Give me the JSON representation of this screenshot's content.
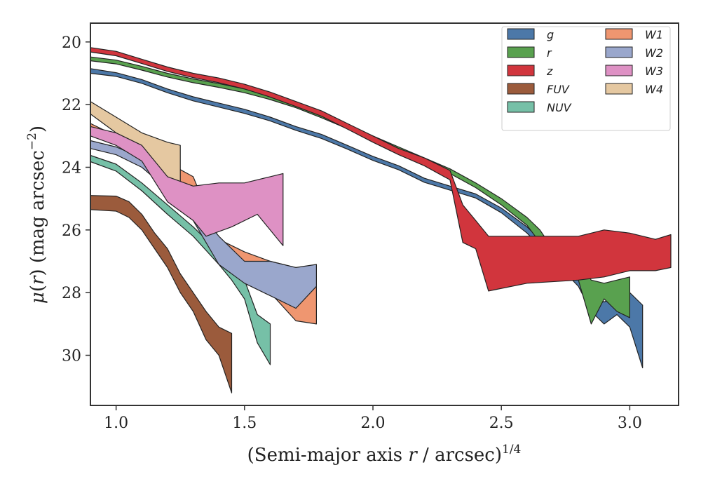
{
  "chart_data": {
    "type": "area",
    "xlabel": "(Semi-major axis r / arcsec)^1/4",
    "ylabel": "μ(r) (mag arcsec^-2)",
    "xlim": [
      0.9,
      3.19
    ],
    "ylim": [
      31.6,
      19.4
    ],
    "y_inverted": true,
    "grid": false,
    "legend_position": "top-right",
    "legend_columns": 2,
    "xticks": [
      "1.0",
      "1.5",
      "2.0",
      "2.5",
      "3.0"
    ],
    "xtick_values": [
      1.0,
      1.5,
      2.0,
      2.5,
      3.0
    ],
    "yticks": [
      "20",
      "22",
      "24",
      "26",
      "28",
      "30"
    ],
    "ytick_values": [
      20,
      22,
      24,
      26,
      28,
      30
    ],
    "series": [
      {
        "name": "g",
        "color": "#4c78a8",
        "upper": [
          [
            0.9,
            20.85
          ],
          [
            1.0,
            20.98
          ],
          [
            1.1,
            21.2
          ],
          [
            1.2,
            21.5
          ],
          [
            1.3,
            21.75
          ],
          [
            1.4,
            21.95
          ],
          [
            1.5,
            22.15
          ],
          [
            1.6,
            22.4
          ],
          [
            1.7,
            22.7
          ],
          [
            1.8,
            22.95
          ],
          [
            1.9,
            23.3
          ],
          [
            2.0,
            23.65
          ],
          [
            2.1,
            23.95
          ],
          [
            2.2,
            24.35
          ],
          [
            2.3,
            24.6
          ],
          [
            2.4,
            24.85
          ],
          [
            2.5,
            25.3
          ],
          [
            2.6,
            25.9
          ],
          [
            2.7,
            26.7
          ],
          [
            2.8,
            27.4
          ],
          [
            2.85,
            27.9
          ],
          [
            2.9,
            28.3
          ],
          [
            2.95,
            28.1
          ],
          [
            3.0,
            28.0
          ],
          [
            3.05,
            28.4
          ]
        ],
        "lower": [
          [
            0.9,
            21.0
          ],
          [
            1.0,
            21.1
          ],
          [
            1.1,
            21.32
          ],
          [
            1.2,
            21.62
          ],
          [
            1.3,
            21.88
          ],
          [
            1.4,
            22.08
          ],
          [
            1.5,
            22.28
          ],
          [
            1.6,
            22.52
          ],
          [
            1.7,
            22.82
          ],
          [
            1.8,
            23.08
          ],
          [
            1.9,
            23.42
          ],
          [
            2.0,
            23.78
          ],
          [
            2.1,
            24.08
          ],
          [
            2.2,
            24.48
          ],
          [
            2.3,
            24.73
          ],
          [
            2.4,
            24.98
          ],
          [
            2.5,
            25.45
          ],
          [
            2.6,
            26.1
          ],
          [
            2.7,
            26.95
          ],
          [
            2.8,
            27.8
          ],
          [
            2.85,
            28.6
          ],
          [
            2.9,
            29.0
          ],
          [
            2.95,
            28.7
          ],
          [
            3.0,
            29.1
          ],
          [
            3.05,
            30.4
          ]
        ]
      },
      {
        "name": "r",
        "color": "#59a14f",
        "upper": [
          [
            0.9,
            20.48
          ],
          [
            1.0,
            20.58
          ],
          [
            1.1,
            20.78
          ],
          [
            1.2,
            21.0
          ],
          [
            1.3,
            21.18
          ],
          [
            1.4,
            21.33
          ],
          [
            1.5,
            21.5
          ],
          [
            1.6,
            21.72
          ],
          [
            1.7,
            21.98
          ],
          [
            1.8,
            22.3
          ],
          [
            1.9,
            22.65
          ],
          [
            2.0,
            23.0
          ],
          [
            2.1,
            23.35
          ],
          [
            2.2,
            23.7
          ],
          [
            2.3,
            24.05
          ],
          [
            2.4,
            24.5
          ],
          [
            2.5,
            25.0
          ],
          [
            2.6,
            25.6
          ],
          [
            2.65,
            26.0
          ],
          [
            2.7,
            26.6
          ],
          [
            2.8,
            27.0
          ],
          [
            2.85,
            27.6
          ],
          [
            2.9,
            27.7
          ],
          [
            2.95,
            27.6
          ],
          [
            3.0,
            27.5
          ]
        ],
        "lower": [
          [
            0.9,
            20.6
          ],
          [
            1.0,
            20.7
          ],
          [
            1.1,
            20.9
          ],
          [
            1.2,
            21.12
          ],
          [
            1.3,
            21.3
          ],
          [
            1.4,
            21.45
          ],
          [
            1.5,
            21.62
          ],
          [
            1.6,
            21.84
          ],
          [
            1.7,
            22.1
          ],
          [
            1.8,
            22.42
          ],
          [
            1.9,
            22.77
          ],
          [
            2.0,
            23.12
          ],
          [
            2.1,
            23.47
          ],
          [
            2.2,
            23.83
          ],
          [
            2.3,
            24.2
          ],
          [
            2.4,
            24.65
          ],
          [
            2.5,
            25.2
          ],
          [
            2.6,
            25.85
          ],
          [
            2.65,
            26.4
          ],
          [
            2.7,
            27.0
          ],
          [
            2.8,
            27.6
          ],
          [
            2.85,
            29.0
          ],
          [
            2.9,
            28.2
          ],
          [
            2.95,
            28.6
          ],
          [
            3.0,
            28.8
          ]
        ]
      },
      {
        "name": "z",
        "color": "#d1353d",
        "upper": [
          [
            0.9,
            20.18
          ],
          [
            1.0,
            20.3
          ],
          [
            1.1,
            20.55
          ],
          [
            1.2,
            20.8
          ],
          [
            1.3,
            21.0
          ],
          [
            1.4,
            21.15
          ],
          [
            1.5,
            21.35
          ],
          [
            1.6,
            21.6
          ],
          [
            1.7,
            21.9
          ],
          [
            1.8,
            22.2
          ],
          [
            1.9,
            22.6
          ],
          [
            2.0,
            23.0
          ],
          [
            2.1,
            23.4
          ],
          [
            2.2,
            23.7
          ],
          [
            2.3,
            24.1
          ],
          [
            2.35,
            25.2
          ],
          [
            2.4,
            25.7
          ],
          [
            2.45,
            26.2
          ],
          [
            2.6,
            26.2
          ],
          [
            2.8,
            26.2
          ],
          [
            2.9,
            26.0
          ],
          [
            3.0,
            26.1
          ],
          [
            3.1,
            26.3
          ],
          [
            3.16,
            26.15
          ]
        ],
        "lower": [
          [
            0.9,
            20.32
          ],
          [
            1.0,
            20.44
          ],
          [
            1.1,
            20.69
          ],
          [
            1.2,
            20.94
          ],
          [
            1.3,
            21.14
          ],
          [
            1.4,
            21.3
          ],
          [
            1.5,
            21.5
          ],
          [
            1.6,
            21.76
          ],
          [
            1.7,
            22.06
          ],
          [
            1.8,
            22.37
          ],
          [
            1.9,
            22.78
          ],
          [
            2.0,
            23.2
          ],
          [
            2.1,
            23.6
          ],
          [
            2.2,
            23.95
          ],
          [
            2.3,
            24.4
          ],
          [
            2.35,
            26.4
          ],
          [
            2.4,
            26.6
          ],
          [
            2.45,
            27.95
          ],
          [
            2.6,
            27.7
          ],
          [
            2.8,
            27.6
          ],
          [
            2.9,
            27.5
          ],
          [
            3.0,
            27.3
          ],
          [
            3.1,
            27.3
          ],
          [
            3.16,
            27.2
          ]
        ]
      },
      {
        "name": "FUV",
        "color": "#9b5b3c",
        "upper": [
          [
            0.9,
            24.9
          ],
          [
            1.0,
            24.92
          ],
          [
            1.05,
            25.1
          ],
          [
            1.1,
            25.5
          ],
          [
            1.15,
            26.1
          ],
          [
            1.2,
            26.6
          ],
          [
            1.25,
            27.4
          ],
          [
            1.3,
            28.0
          ],
          [
            1.35,
            28.6
          ],
          [
            1.4,
            29.1
          ],
          [
            1.45,
            29.3
          ]
        ],
        "lower": [
          [
            0.9,
            25.35
          ],
          [
            1.0,
            25.4
          ],
          [
            1.05,
            25.6
          ],
          [
            1.1,
            26.0
          ],
          [
            1.15,
            26.6
          ],
          [
            1.2,
            27.2
          ],
          [
            1.25,
            28.0
          ],
          [
            1.3,
            28.6
          ],
          [
            1.35,
            29.5
          ],
          [
            1.4,
            30.0
          ],
          [
            1.45,
            31.2
          ]
        ]
      },
      {
        "name": "NUV",
        "color": "#76c0a7",
        "upper": [
          [
            0.9,
            23.62
          ],
          [
            1.0,
            23.9
          ],
          [
            1.1,
            24.5
          ],
          [
            1.2,
            25.2
          ],
          [
            1.3,
            25.9
          ],
          [
            1.4,
            26.7
          ],
          [
            1.45,
            27.0
          ],
          [
            1.5,
            27.6
          ],
          [
            1.55,
            28.7
          ],
          [
            1.6,
            29.0
          ]
        ],
        "lower": [
          [
            0.9,
            23.82
          ],
          [
            1.0,
            24.12
          ],
          [
            1.1,
            24.75
          ],
          [
            1.2,
            25.5
          ],
          [
            1.3,
            26.2
          ],
          [
            1.4,
            27.1
          ],
          [
            1.45,
            27.6
          ],
          [
            1.5,
            28.2
          ],
          [
            1.55,
            29.6
          ],
          [
            1.6,
            30.3
          ]
        ]
      },
      {
        "name": "W1",
        "color": "#ef9670",
        "upper": [
          [
            0.9,
            22.6
          ],
          [
            1.0,
            23.0
          ],
          [
            1.1,
            23.4
          ],
          [
            1.2,
            23.85
          ],
          [
            1.3,
            24.3
          ],
          [
            1.4,
            26.3
          ],
          [
            1.5,
            26.7
          ],
          [
            1.6,
            27.0
          ],
          [
            1.7,
            27.2
          ],
          [
            1.78,
            27.4
          ]
        ],
        "lower": [
          [
            0.9,
            22.85
          ],
          [
            1.0,
            23.3
          ],
          [
            1.1,
            23.7
          ],
          [
            1.2,
            24.2
          ],
          [
            1.3,
            24.7
          ],
          [
            1.4,
            26.7
          ],
          [
            1.5,
            27.4
          ],
          [
            1.6,
            28.0
          ],
          [
            1.7,
            28.9
          ],
          [
            1.78,
            29.0
          ]
        ]
      },
      {
        "name": "W2",
        "color": "#9aa7cc",
        "upper": [
          [
            0.9,
            23.15
          ],
          [
            1.0,
            23.35
          ],
          [
            1.1,
            23.7
          ],
          [
            1.2,
            24.3
          ],
          [
            1.3,
            25.2
          ],
          [
            1.4,
            26.2
          ],
          [
            1.5,
            27.0
          ],
          [
            1.6,
            27.0
          ],
          [
            1.7,
            27.2
          ],
          [
            1.78,
            27.1
          ]
        ],
        "lower": [
          [
            0.9,
            23.4
          ],
          [
            1.0,
            23.6
          ],
          [
            1.1,
            24.0
          ],
          [
            1.2,
            24.7
          ],
          [
            1.3,
            25.7
          ],
          [
            1.4,
            27.1
          ],
          [
            1.5,
            27.7
          ],
          [
            1.6,
            28.1
          ],
          [
            1.7,
            28.5
          ],
          [
            1.78,
            27.8
          ]
        ]
      },
      {
        "name": "W3",
        "color": "#de91c4",
        "upper": [
          [
            0.9,
            22.7
          ],
          [
            1.0,
            22.9
          ],
          [
            1.1,
            23.3
          ],
          [
            1.2,
            24.3
          ],
          [
            1.3,
            24.6
          ],
          [
            1.4,
            24.5
          ],
          [
            1.5,
            24.5
          ],
          [
            1.6,
            24.3
          ],
          [
            1.65,
            24.2
          ]
        ],
        "lower": [
          [
            0.9,
            23.0
          ],
          [
            1.0,
            23.3
          ],
          [
            1.1,
            23.8
          ],
          [
            1.2,
            25.1
          ],
          [
            1.3,
            25.7
          ],
          [
            1.35,
            26.2
          ],
          [
            1.45,
            25.9
          ],
          [
            1.55,
            25.5
          ],
          [
            1.65,
            26.5
          ]
        ]
      },
      {
        "name": "W4",
        "color": "#e5c8a1",
        "upper": [
          [
            0.9,
            21.9
          ],
          [
            1.0,
            22.4
          ],
          [
            1.1,
            22.9
          ],
          [
            1.2,
            23.2
          ],
          [
            1.25,
            23.3
          ]
        ],
        "lower": [
          [
            0.9,
            22.3
          ],
          [
            1.0,
            22.9
          ],
          [
            1.1,
            23.6
          ],
          [
            1.2,
            24.6
          ],
          [
            1.25,
            24.5
          ]
        ]
      }
    ]
  }
}
